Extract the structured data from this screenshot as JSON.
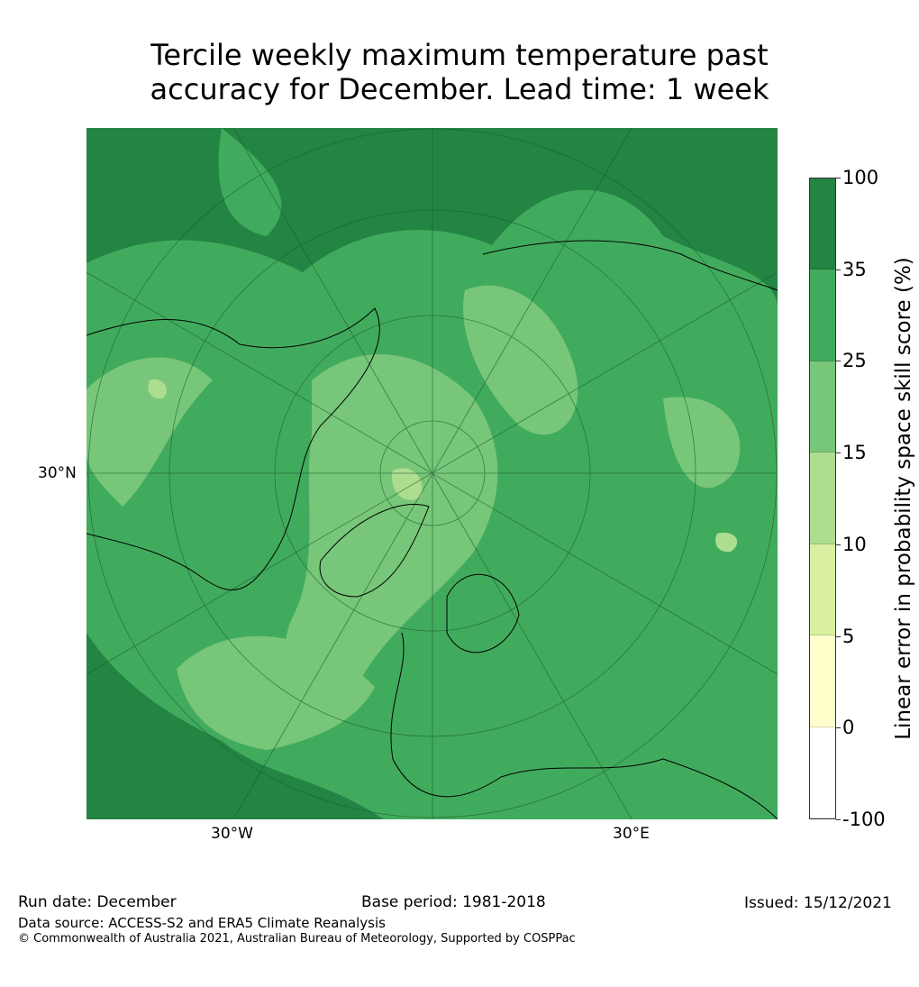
{
  "title": {
    "line1": "Tercile weekly maximum temperature past",
    "line2": "accuracy for December. Lead time: 1 week"
  },
  "map": {
    "axis_labels": {
      "lat": "30°N",
      "lon_west": "30°W",
      "lon_east": "30°E"
    },
    "projection": "north-polar-stereographic"
  },
  "colorbar": {
    "label": "Linear error in probability space skill score (%)",
    "ticks": [
      "100",
      "35",
      "25",
      "15",
      "10",
      "5",
      "0",
      "-100"
    ],
    "colors": [
      "#238443",
      "#41ab5d",
      "#78c679",
      "#addd8e",
      "#d9f0a3",
      "#ffffcc",
      "#ffffff"
    ]
  },
  "footer": {
    "run_date": "Run date: December",
    "base_period": "Base period: 1981-2018",
    "issued": "Issued: 15/12/2021",
    "data_source": "Data source: ACCESS-S2 and ERA5 Climate Reanalysis",
    "copyright": "© Commonwealth of Australia 2021, Australian Bureau of Meteorology, Supported by COSPPac"
  }
}
